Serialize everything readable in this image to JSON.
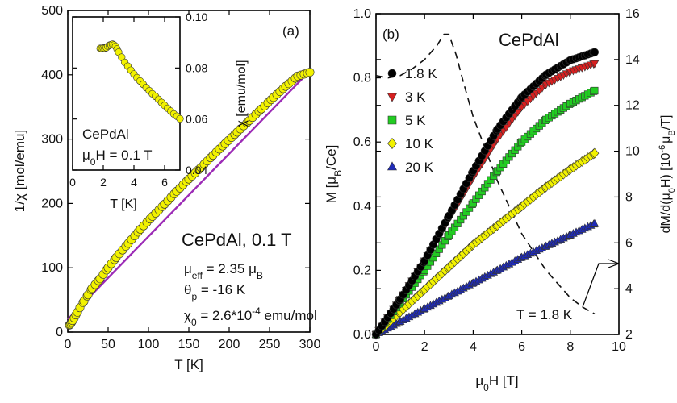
{
  "chart_data": [
    {
      "panel": "(a)",
      "type": "scatter",
      "xlabel": "T [K]",
      "ylabel": "1/χ [mol/emu]",
      "xlim": [
        0,
        300
      ],
      "ylim": [
        0,
        500
      ],
      "xticks": [
        "0",
        "50",
        "100",
        "150",
        "200",
        "250",
        "300"
      ],
      "yticks": [
        "0",
        "100",
        "200",
        "300",
        "400",
        "500"
      ],
      "annotation": {
        "title": "CePdAl, 0.1 T",
        "mu_eff_label": "μ",
        "mu_eff_sub": "eff",
        "mu_eff_value": " = 2.35 μ",
        "mu_eff_unit_sub": "B",
        "theta_label": "θ",
        "theta_sub": "p",
        "theta_value": " = -16 K",
        "chi0_label": "χ",
        "chi0_sub": "0",
        "chi0_value": " = 2.6*10",
        "chi0_exp": "-4",
        "chi0_unit": " emu/mol"
      },
      "series": [
        {
          "color": "#f2f200",
          "x": [
            2,
            3,
            4,
            5,
            6,
            8,
            10,
            12,
            15,
            20,
            25,
            30,
            40,
            50,
            60,
            75,
            90,
            105,
            120,
            135,
            150,
            165,
            180,
            195,
            210,
            225,
            240,
            255,
            270,
            285,
            300
          ],
          "y": [
            11,
            12,
            14,
            16,
            18,
            22,
            27,
            31,
            38,
            48,
            58,
            68,
            83,
            100,
            116,
            138,
            160,
            180,
            199,
            219,
            238,
            256,
            275,
            293,
            311,
            329,
            347,
            365,
            382,
            398,
            404
          ]
        },
        {
          "color": "#9c2bb6",
          "fit": true,
          "x": [
            0,
            300
          ],
          "y": [
            20,
            406
          ]
        }
      ],
      "inset": {
        "type": "scatter",
        "xlabel": "T [K]",
        "ylabel": "χ [emu/mol]",
        "xlim": [
          0,
          7
        ],
        "ylim": [
          0.04,
          0.1
        ],
        "xticks": [
          "0",
          "2",
          "4",
          "6"
        ],
        "yticks": [
          "0.04",
          "0.06",
          "0.08",
          "0.10"
        ],
        "label_compound": "CePdAl",
        "label_field_mu": "μ",
        "label_field_sub": "0",
        "label_field_rest": "H = 0.1 T",
        "x": [
          1.8,
          1.9,
          2.0,
          2.1,
          2.2,
          2.3,
          2.4,
          2.5,
          2.6,
          2.7,
          2.8,
          2.9,
          3.0,
          3.2,
          3.4,
          3.6,
          3.8,
          4.0,
          4.2,
          4.4,
          4.6,
          4.8,
          5.0,
          5.2,
          5.4,
          5.6,
          5.8,
          6.0,
          6.2,
          6.4,
          6.6,
          6.8,
          7.0
        ],
        "y": [
          0.0877,
          0.0877,
          0.0878,
          0.0878,
          0.088,
          0.0885,
          0.0889,
          0.0891,
          0.0893,
          0.089,
          0.0885,
          0.0874,
          0.0862,
          0.0842,
          0.0822,
          0.0807,
          0.0791,
          0.0776,
          0.0762,
          0.0749,
          0.0736,
          0.0723,
          0.0711,
          0.0699,
          0.0689,
          0.0677,
          0.0665,
          0.0653,
          0.0642,
          0.0631,
          0.062,
          0.0611,
          0.0601
        ]
      }
    },
    {
      "panel": "(b)",
      "type": "scatter",
      "title": "CePdAl",
      "xlabel_mu": "μ",
      "xlabel_sub": "0",
      "xlabel_rest": "H [T]",
      "ylabel_left": "M [μ",
      "ylabel_left_sub": "B",
      "ylabel_left_end": "/Ce]",
      "ylabel_right": "dM/d(μ",
      "ylabel_right_sub": "0",
      "ylabel_right_mid": "H) [10",
      "ylabel_right_exp": "-6",
      "ylabel_right_mu": "μ",
      "ylabel_right_sub2": "B",
      "ylabel_right_end": "/T]",
      "xlim": [
        0,
        10
      ],
      "ylim_left": [
        0,
        1.0
      ],
      "ylim_right": [
        2,
        16
      ],
      "xticks": [
        "0",
        "2",
        "4",
        "6",
        "8",
        "10"
      ],
      "yticks_left": [
        "0.0",
        "0.2",
        "0.4",
        "0.6",
        "0.8",
        "1.0"
      ],
      "yticks_right": [
        "2",
        "4",
        "6",
        "8",
        "10",
        "12",
        "14",
        "16"
      ],
      "legend_position": "middle-left",
      "series": [
        {
          "name": "1.8 K",
          "marker": "circle",
          "color": "#000000",
          "x": [
            0,
            1,
            2,
            3,
            4,
            5,
            6,
            7,
            8,
            9
          ],
          "y": [
            0,
            0.11,
            0.23,
            0.37,
            0.51,
            0.64,
            0.74,
            0.81,
            0.855,
            0.88
          ]
        },
        {
          "name": "3 K",
          "marker": "triangle-down",
          "color": "#d62020",
          "x": [
            0,
            1,
            2,
            3,
            4,
            5,
            6,
            7,
            8,
            9
          ],
          "y": [
            0,
            0.11,
            0.23,
            0.36,
            0.49,
            0.61,
            0.71,
            0.78,
            0.82,
            0.845
          ]
        },
        {
          "name": "5 K",
          "marker": "square",
          "color": "#22cc22",
          "x": [
            0,
            1,
            2,
            3,
            4,
            5,
            6,
            7,
            8,
            9
          ],
          "y": [
            0,
            0.1,
            0.2,
            0.31,
            0.41,
            0.51,
            0.6,
            0.67,
            0.72,
            0.76
          ]
        },
        {
          "name": "10 K",
          "marker": "diamond",
          "color": "#f2f200",
          "x": [
            0,
            1,
            2,
            3,
            4,
            5,
            6,
            7,
            8,
            9
          ],
          "y": [
            0,
            0.07,
            0.14,
            0.21,
            0.28,
            0.34,
            0.4,
            0.46,
            0.515,
            0.565
          ]
        },
        {
          "name": "20 K",
          "marker": "triangle-up",
          "color": "#1f2bb8",
          "x": [
            0,
            1,
            2,
            3,
            4,
            5,
            6,
            7,
            8,
            9
          ],
          "y": [
            0,
            0.04,
            0.08,
            0.12,
            0.16,
            0.2,
            0.24,
            0.275,
            0.31,
            0.345
          ]
        }
      ],
      "derivative": {
        "label": "T = 1.8 K",
        "axis": "right",
        "style": "dashed",
        "x": [
          0,
          0.5,
          1.0,
          1.5,
          2.0,
          2.5,
          2.8,
          3.0,
          3.3,
          3.6,
          4.0,
          5.0,
          6.0,
          7.0,
          8.0,
          8.5,
          9.0
        ],
        "y": [
          13.3,
          13.2,
          13.3,
          13.6,
          14.0,
          14.6,
          15.1,
          15.1,
          14.2,
          13.0,
          11.5,
          8.7,
          6.4,
          4.8,
          3.6,
          3.2,
          2.9
        ]
      }
    }
  ]
}
